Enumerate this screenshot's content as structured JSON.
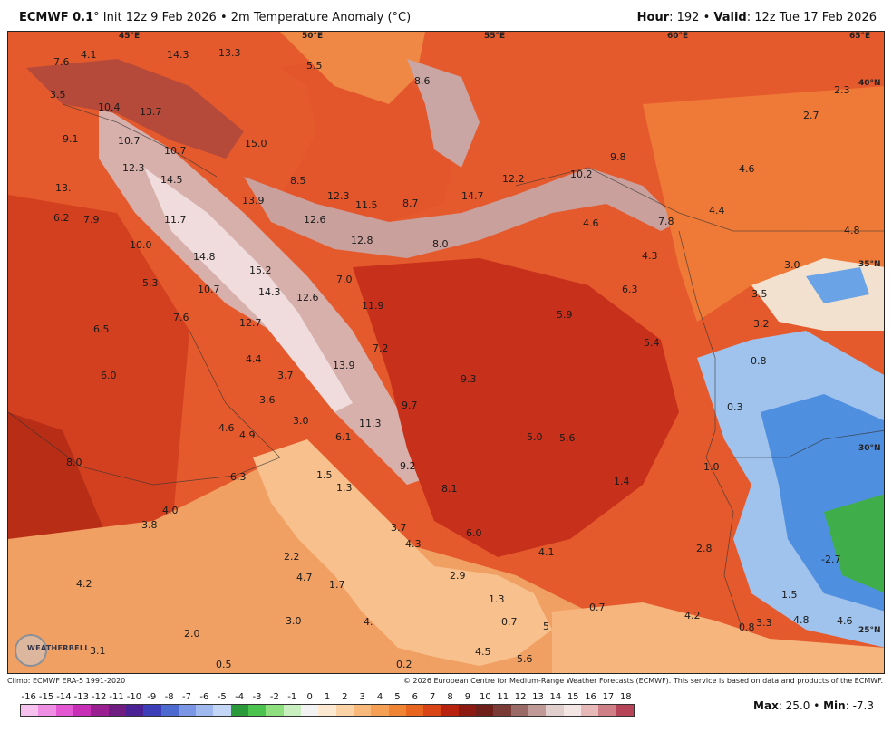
{
  "header": {
    "model": "ECMWF 0.1",
    "init_text": "° Init 12z 9 Feb 2026 • 2m Temperature Anomaly (°C)",
    "hour_label": "Hour",
    "hour_value": ": 192 • ",
    "valid_label": "Valid",
    "valid_value": ": 12z Tue 17 Feb 2026"
  },
  "grid_labels": {
    "lon_45": "45°E",
    "lon_50": "50°E",
    "lon_55": "55°E",
    "lon_60": "60°E",
    "lon_65": "65°E",
    "lat_40": "40°N",
    "lat_35": "35°N",
    "lat_30": "30°N",
    "lat_25": "25°N"
  },
  "values": {
    "v1": "7.6",
    "v2": "4.1",
    "v3": "14.3",
    "v4": "13.3",
    "v5": "5.5",
    "v6": "8.6",
    "v7": "3.5",
    "v8": "10.4",
    "v9": "13.7",
    "v10": "9.1",
    "v11": "10.7",
    "v12": "10.7",
    "v13": "15.0",
    "v14": "12.3",
    "v15": "14.5",
    "v16": "8.5",
    "v17": "13.",
    "v18": "12.3",
    "v19": "13.9",
    "v20": "11.5",
    "v21": "8.7",
    "v22": "14.7",
    "v23": "12.2",
    "v24": "10.2",
    "v25": "9.8",
    "v26": "6.2",
    "v27": "7.9",
    "v28": "11.7",
    "v29": "12.6",
    "v30": "12.8",
    "v31": "8.0",
    "v32": "4.6",
    "v33": "7.8",
    "v34": "4.4",
    "v35": "10.0",
    "v36": "14.8",
    "v37": "15.2",
    "v38": "7.0",
    "v39": "4.3",
    "v40": "5.3",
    "v41": "10.7",
    "v42": "14.3",
    "v43": "12.6",
    "v44": "11.9",
    "v45": "6.3",
    "v46": "7.6",
    "v47": "12.7",
    "v48": "5.9",
    "v49": "6.5",
    "v50": "7.2",
    "v51": "5.4",
    "v52": "4.4",
    "v53": "6.0",
    "v54": "3.7",
    "v55": "13.9",
    "v56": "9.3",
    "v57": "3.6",
    "v58": "9.7",
    "v59": "3.0",
    "v60": "11.3",
    "v61": "4.6",
    "v62": "4.9",
    "v63": "6.1",
    "v64": "5.0",
    "v65": "5.6",
    "v66": "8.0",
    "v67": "9.2",
    "v68": "6.3",
    "v69": "1.5",
    "v70": "1.3",
    "v71": "8.1",
    "v72": "1.4",
    "v73": "4.0",
    "v74": "3.8",
    "v75": "3.7",
    "v76": "4.3",
    "v77": "6.0",
    "v78": "2.2",
    "v79": "4.2",
    "v80": "4.7",
    "v81": "1.7",
    "v82": "2.9",
    "v83": "4.1",
    "v84": "1.3",
    "v85": "0.7",
    "v86": "3.0",
    "v87": "4.",
    "v88": "2.0",
    "v89": "0.7",
    "v90": "5",
    "v91": "3.1",
    "v92": "0.5",
    "v93": "0.2",
    "v94": "4.5",
    "v95": "5.6",
    "v96": "2.3",
    "v97": "2.7",
    "v98": "4.6",
    "v99": "4.8",
    "v100": "3.0",
    "v101": "3.5",
    "v102": "3.2",
    "v103": "0.8",
    "v104": "0.3",
    "v105": "1.0",
    "v106": "2.8",
    "v107": "-2.7",
    "v108": "1.5",
    "v109": "4.2",
    "v110": "0.8",
    "v111": "3.3",
    "v112": "4.8",
    "v113": "4.6"
  },
  "footer": {
    "climo": "Climo: ECMWF ERA-5 1991-2020",
    "copyright": "© 2026 European Centre for Medium-Range Weather Forecasts (ECMWF). This service is based on data and products of the ECMWF.",
    "max_label": "Max",
    "max_value": ": 25.0 • ",
    "min_label": "Min",
    "min_value": ": -7.3",
    "logo_text": "WEATHERBELL"
  },
  "colorbar": {
    "ticks": [
      "-16",
      "-15",
      "-14",
      "-13",
      "-12",
      "-11",
      "-10",
      "-9",
      "-8",
      "-7",
      "-6",
      "-5",
      "-4",
      "-3",
      "-2",
      "-1",
      "0",
      "1",
      "2",
      "3",
      "4",
      "5",
      "6",
      "7",
      "8",
      "9",
      "10",
      "11",
      "12",
      "13",
      "14",
      "15",
      "16",
      "17",
      "18"
    ],
    "colors": [
      "#f6c1ef",
      "#ee8fe3",
      "#e357d3",
      "#c72fb6",
      "#9a1f90",
      "#6f1d80",
      "#4a2296",
      "#3c3fb8",
      "#4d6ad1",
      "#7a96e4",
      "#9fb8ee",
      "#c4d6f6",
      "#2b9a3a",
      "#4cc24f",
      "#8ee07e",
      "#c9efc0",
      "#f2f2f2",
      "#fde9d2",
      "#fcd3a7",
      "#f9b97a",
      "#f5a055",
      "#f08435",
      "#e86520",
      "#d84416",
      "#b8230f",
      "#8c1a12",
      "#6e1f1a",
      "#7a3a36",
      "#9a6a66",
      "#c09a96",
      "#e0cfcd",
      "#f3e5e4",
      "#e6b8b8",
      "#cf7f86",
      "#b64458"
    ]
  },
  "colors": {
    "land_warm": "#e4572e",
    "land_hot": "#c9331a",
    "sea_orange": "#f6b27a",
    "cold_blue": "#4f8fe0",
    "mountain_pink": "#d9b3b3"
  }
}
